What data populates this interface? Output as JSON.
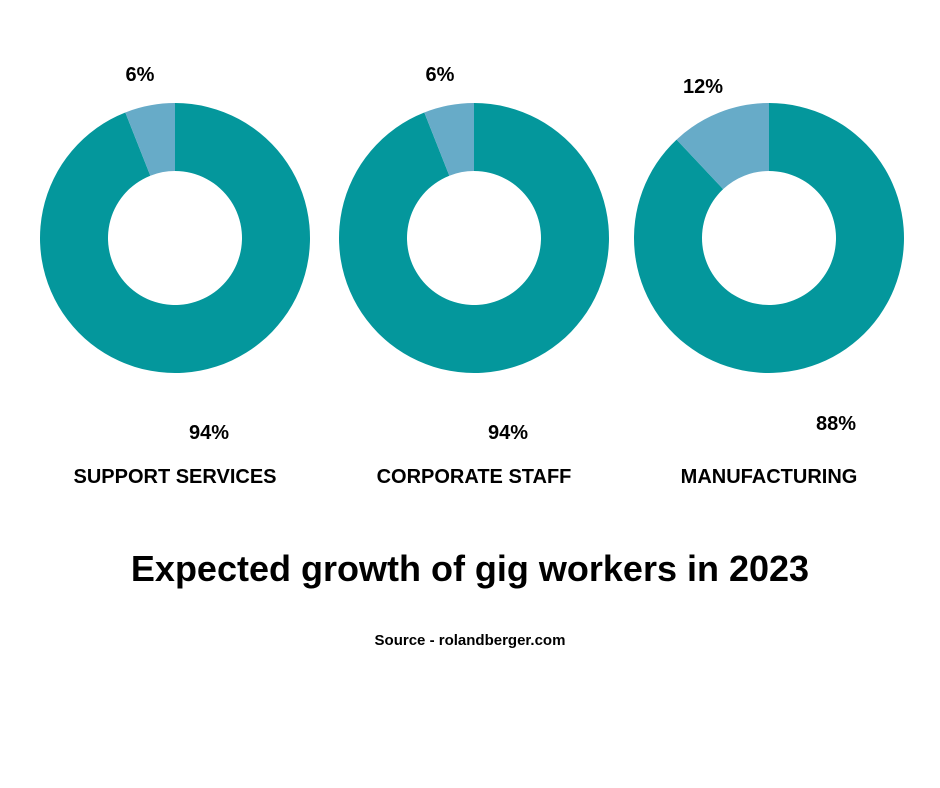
{
  "chart_data": {
    "type": "pie",
    "variant": "donut",
    "title": "Expected growth of gig workers in 2023",
    "source": "Source - rolandberger.com",
    "colors": {
      "major": "#04979c",
      "minor": "#67abc8"
    },
    "charts": [
      {
        "category": "SUPPORT SERVICES",
        "slices": [
          {
            "value": 94,
            "label": "94%"
          },
          {
            "value": 6,
            "label": "6%"
          }
        ]
      },
      {
        "category": "CORPORATE STAFF",
        "slices": [
          {
            "value": 94,
            "label": "94%"
          },
          {
            "value": 6,
            "label": "6%"
          }
        ]
      },
      {
        "category": "MANUFACTURING",
        "slices": [
          {
            "value": 88,
            "label": "88%"
          },
          {
            "value": 12,
            "label": "12%"
          }
        ]
      }
    ]
  }
}
